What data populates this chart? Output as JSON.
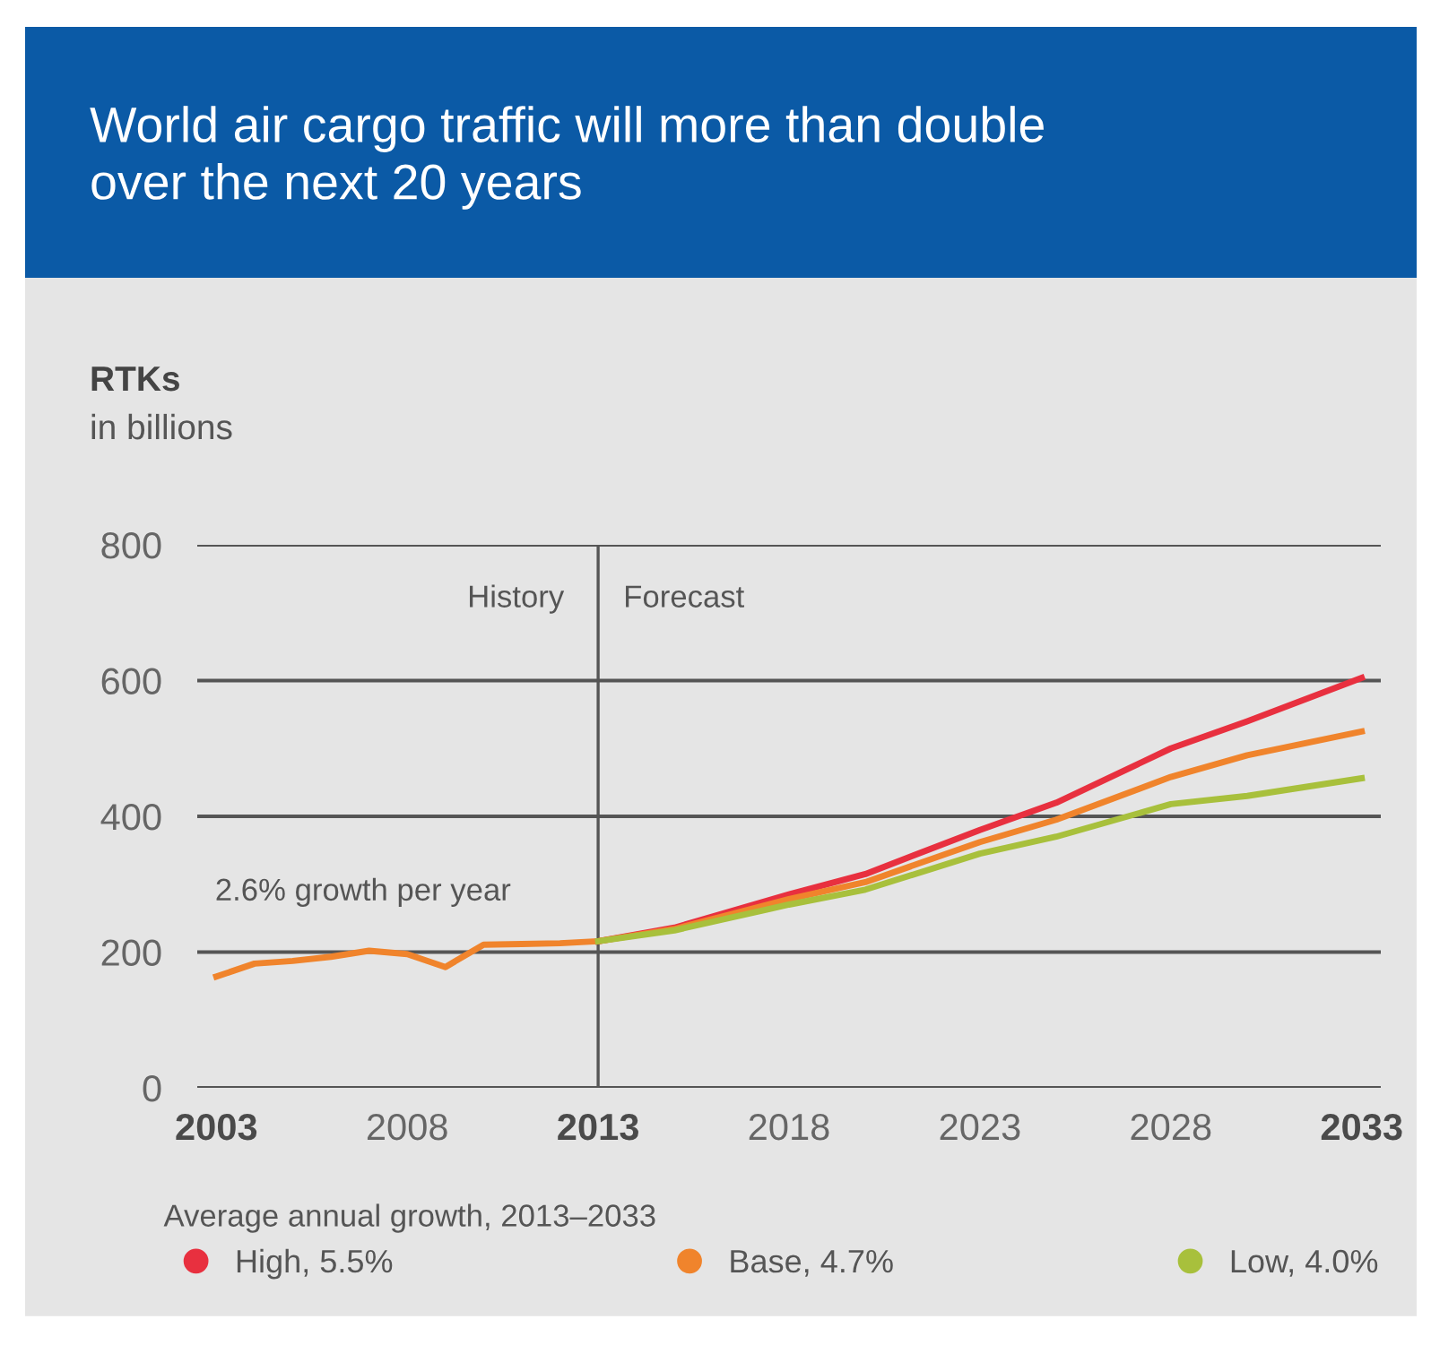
{
  "chart_data": {
    "type": "line",
    "title": "World air cargo traffic will more than double\nover the next 20 years",
    "ylabel": "RTKs",
    "subtitle": "in billions",
    "legend_title": "Average annual growth, 2013–2033",
    "series": [
      {
        "name": "High, 5.5%",
        "color": "#e8303f",
        "x": [
          2013,
          2015,
          2018,
          2020,
          2023,
          2025,
          2028,
          2030,
          2033
        ],
        "values": [
          216,
          236,
          285,
          315,
          380,
          420,
          500,
          540,
          604
        ]
      },
      {
        "name": "Base, 4.7%",
        "color": "#f0842c",
        "x": [
          2003,
          2004,
          2005,
          2006,
          2007,
          2008,
          2009,
          2010,
          2011,
          2012,
          2013,
          2015,
          2018,
          2020,
          2023,
          2025,
          2028,
          2030,
          2033
        ],
        "values": [
          164,
          183,
          187,
          193,
          202,
          197,
          178,
          211,
          212,
          213,
          216,
          234,
          278,
          303,
          362,
          395,
          458,
          490,
          525
        ]
      },
      {
        "name": "Low, 4.0%",
        "color": "#a8c03c",
        "x": [
          2013,
          2015,
          2018,
          2020,
          2023,
          2025,
          2028,
          2030,
          2033
        ],
        "values": [
          216,
          232,
          270,
          292,
          345,
          370,
          418,
          430,
          456
        ]
      }
    ],
    "xlim": [
      2002.5,
      2033.5
    ],
    "xticks": [
      2003,
      2008,
      2013,
      2018,
      2023,
      2028,
      2033
    ],
    "ylim": [
      0,
      800
    ],
    "yticks": [
      0,
      200,
      400,
      600,
      800
    ],
    "grid": "y",
    "legend": "bottom",
    "ref_lines": [
      {
        "axis": "x",
        "value": 2013,
        "color": "#555555"
      }
    ],
    "annotations": [
      "History",
      "Forecast",
      "2.6% growth per year"
    ]
  }
}
